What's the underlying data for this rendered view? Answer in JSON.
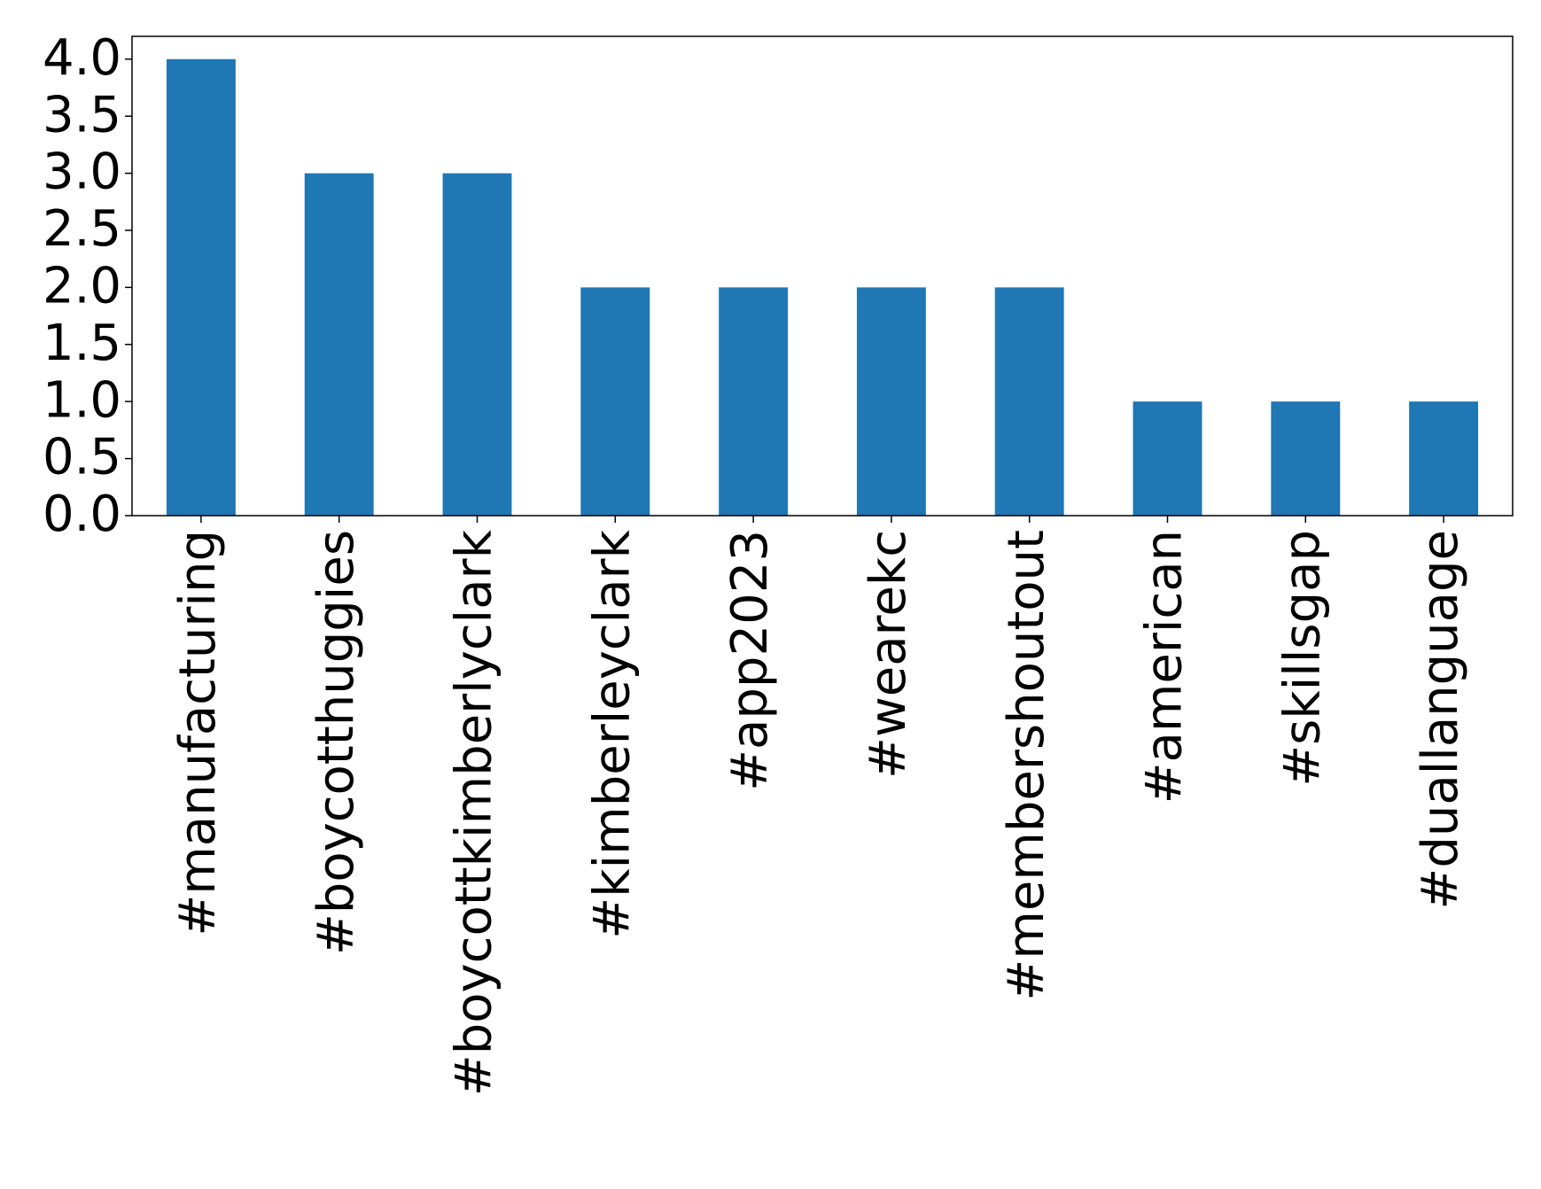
{
  "chart_data": {
    "type": "bar",
    "categories": [
      "#manufacturing",
      "#boycotthuggies",
      "#boycottkimberlyclark",
      "#kimberleyclark",
      "#app2023",
      "#wearekc",
      "#membershoutout",
      "#american",
      "#skillsgap",
      "#duallanguage"
    ],
    "values": [
      4,
      3,
      3,
      2,
      2,
      2,
      2,
      1,
      1,
      1
    ],
    "color": "#1f77b4",
    "ylim": [
      0,
      4.2
    ],
    "yticks": [
      {
        "value": 0,
        "label": "0.0"
      },
      {
        "value": 0.5,
        "label": "0.5"
      },
      {
        "value": 1,
        "label": "1.0"
      },
      {
        "value": 1.5,
        "label": "1.5"
      },
      {
        "value": 2,
        "label": "2.0"
      },
      {
        "value": 2.5,
        "label": "2.5"
      },
      {
        "value": 3,
        "label": "3.0"
      },
      {
        "value": 3.5,
        "label": "3.5"
      },
      {
        "value": 4,
        "label": "4.0"
      }
    ],
    "grid": false
  }
}
